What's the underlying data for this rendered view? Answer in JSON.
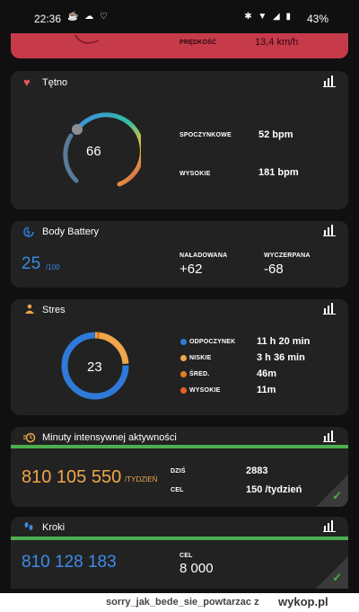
{
  "status": {
    "time": "22:36",
    "battery": "43%",
    "left_icons": "☕ ☁ ♡",
    "right_icons": "✱ ▼ ◢ ▮"
  },
  "speed": {
    "label": "PRĘDKOŚĆ",
    "value": "13,4 km/h"
  },
  "heart": {
    "title": "Tętno",
    "gauge_value": "66",
    "rows": [
      {
        "label": "SPOCZYNKOWE",
        "value": "52 bpm"
      },
      {
        "label": "WYSOKIE",
        "value": "181 bpm"
      }
    ]
  },
  "body_battery": {
    "title": "Body Battery",
    "value": "25",
    "max": "/100",
    "charged_label": "NAŁADOWANA",
    "charged_value": "+62",
    "drained_label": "WYCZERPANA",
    "drained_value": "-68"
  },
  "stress": {
    "title": "Stres",
    "value": "23",
    "legend": [
      {
        "label": "ODPOCZYNEK",
        "value": "11 h 20 min",
        "color": "#2f7ad8"
      },
      {
        "label": "NISKIE",
        "value": "3 h 36 min",
        "color": "#f0a64a"
      },
      {
        "label": "ŚRED.",
        "value": "46m",
        "color": "#e67e22"
      },
      {
        "label": "WYSOKIE",
        "value": "11m",
        "color": "#e8641e"
      }
    ]
  },
  "intensity": {
    "title": "Minuty intensywnej aktywności",
    "value": "810 105 550",
    "unit": "/TYDZIEŃ",
    "today_label": "DZIŚ",
    "today_value": "2883",
    "goal_label": "CEL",
    "goal_value": "150 /tydzień"
  },
  "steps": {
    "title": "Kroki",
    "value": "810 128 183",
    "goal_label": "CEL",
    "goal_value": "8 000"
  },
  "footer": {
    "username": "sorry_jak_bede_sie_powtarzac",
    "z": "z",
    "logo": "wykop.pl"
  },
  "colors": {
    "heart_red": "#e8555d",
    "battery_blue": "#2f7ad8",
    "stress_orange": "#f0a64a",
    "intensity_orange": "#f0a64a",
    "steps_blue": "#3d8be8",
    "goal_green": "#4caf50"
  }
}
